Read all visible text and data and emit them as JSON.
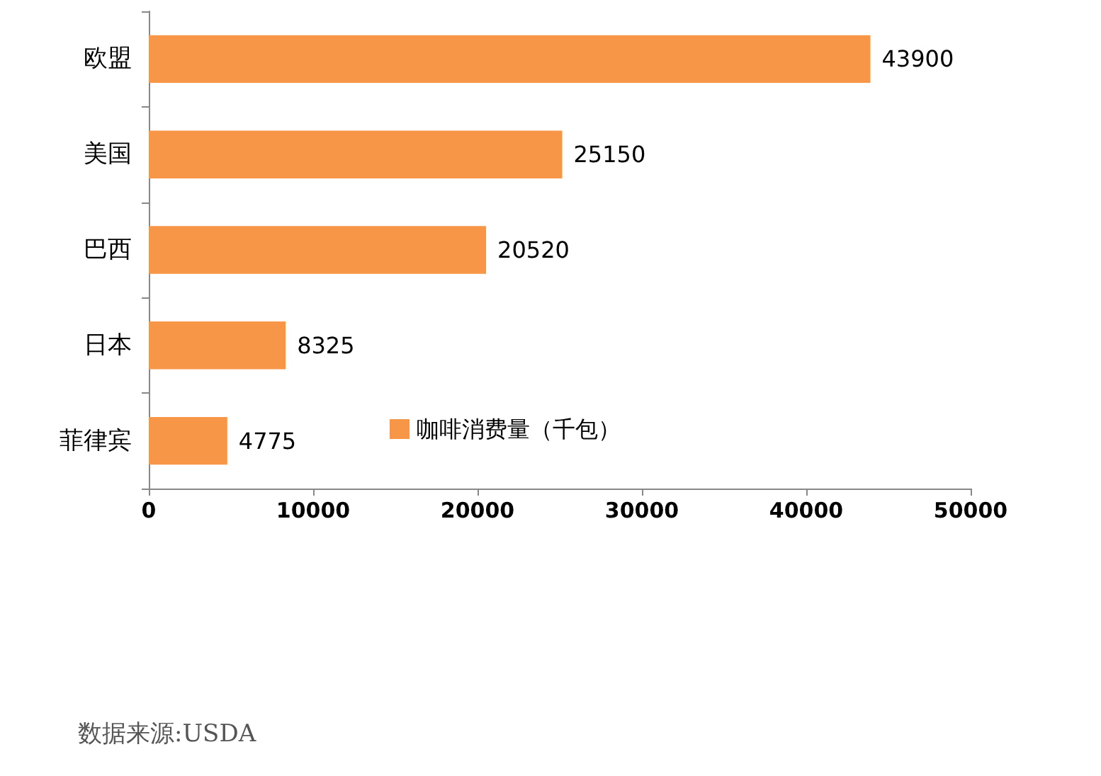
{
  "chart_data": {
    "type": "bar",
    "orientation": "horizontal",
    "categories": [
      "欧盟",
      "美国",
      "巴西",
      "日本",
      "菲律宾"
    ],
    "series": [
      {
        "name": "咖啡消费量（千包）",
        "color": "#f79646",
        "values": [
          43900,
          25150,
          20520,
          8325,
          4775
        ]
      }
    ],
    "xlim": [
      0,
      50000
    ],
    "xticks": [
      0,
      10000,
      20000,
      30000,
      40000,
      50000
    ],
    "data_labels": true,
    "grid": false,
    "legend": "bottom",
    "annotations": [
      "数据来源:USDA"
    ]
  }
}
